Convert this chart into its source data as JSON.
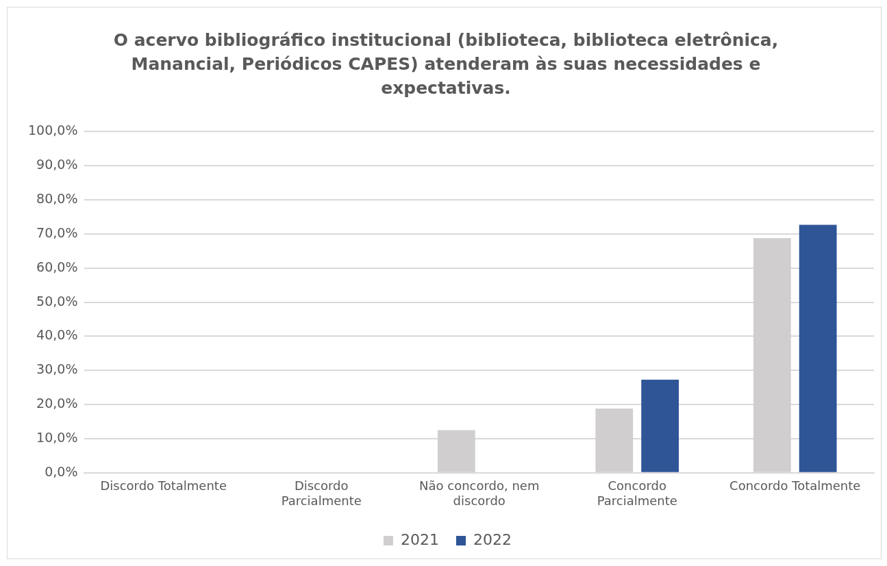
{
  "chart_data": {
    "type": "bar",
    "title": "O acervo bibliográfico institucional (biblioteca, biblioteca eletrônica, Manancial, Periódicos CAPES) atenderam às suas necessidades e expectativas.",
    "categories": [
      "Discordo Totalmente",
      "Discordo Parcialmente",
      "Não concordo, nem discordo",
      "Concordo Parcialmente",
      "Concordo Totalmente"
    ],
    "series": [
      {
        "name": "2021",
        "color": "#d0cece",
        "values": [
          0,
          0,
          12.5,
          18.8,
          68.8
        ]
      },
      {
        "name": "2022",
        "color": "#2f5597",
        "values": [
          0,
          0,
          0,
          27.3,
          72.7
        ]
      }
    ],
    "ylim": [
      0,
      100
    ],
    "yticks": [
      {
        "value": 0,
        "label": "0,0%"
      },
      {
        "value": 10,
        "label": "10,0%"
      },
      {
        "value": 20,
        "label": "20,0%"
      },
      {
        "value": 30,
        "label": "30,0%"
      },
      {
        "value": 40,
        "label": "40,0%"
      },
      {
        "value": 50,
        "label": "50,0%"
      },
      {
        "value": 60,
        "label": "60,0%"
      },
      {
        "value": 70,
        "label": "70,0%"
      },
      {
        "value": 80,
        "label": "80,0%"
      },
      {
        "value": 90,
        "label": "90,0%"
      },
      {
        "value": 100,
        "label": "100,0%"
      }
    ],
    "grid": "y",
    "legend": "bottom"
  }
}
